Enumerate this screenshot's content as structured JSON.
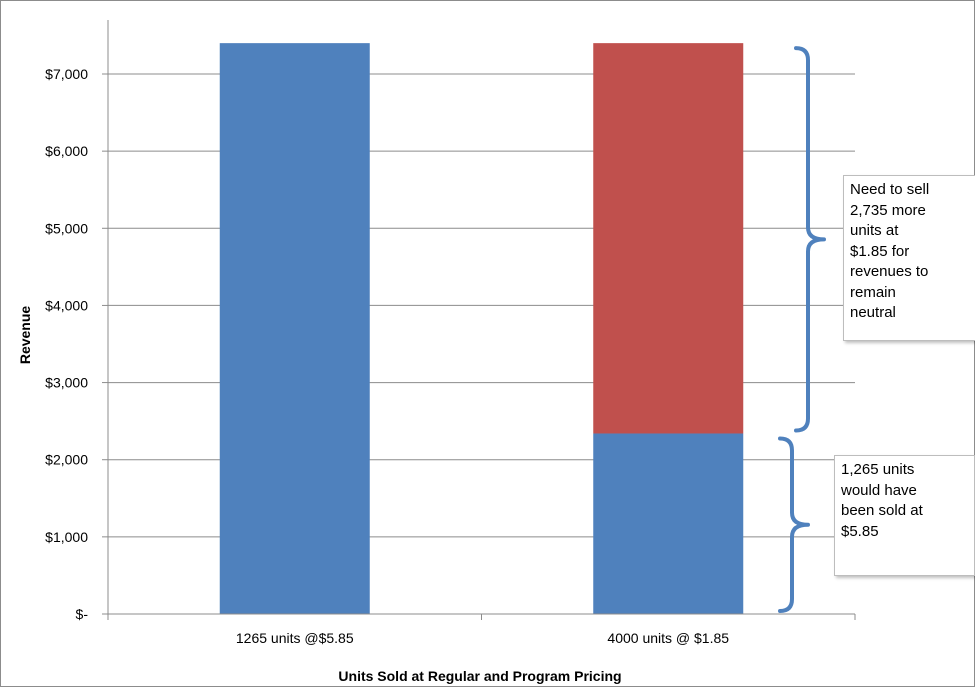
{
  "chart_data": {
    "type": "bar",
    "stacked": true,
    "categories": [
      "1265 units @$5.85",
      "4000 units @ $1.85"
    ],
    "series": [
      {
        "values": [
          7400,
          2340
        ],
        "color": "#4F81BD"
      },
      {
        "values": [
          0,
          5060
        ],
        "color": "#C0504D"
      }
    ],
    "xlabel": "Units Sold at Regular and Program Pricing",
    "ylabel": "Revenue",
    "ylim": [
      0,
      7700
    ],
    "yticks": [
      {
        "value": 0,
        "label": "$-"
      },
      {
        "value": 1000,
        "label": "$1,000"
      },
      {
        "value": 2000,
        "label": "$2,000"
      },
      {
        "value": 3000,
        "label": "$3,000"
      },
      {
        "value": 4000,
        "label": "$4,000"
      },
      {
        "value": 5000,
        "label": "$5,000"
      },
      {
        "value": 6000,
        "label": "$6,000"
      },
      {
        "value": 7000,
        "label": "$7,000"
      }
    ],
    "grid": true,
    "legend": "none",
    "annotations": [
      {
        "text": "Need to sell\n2,735 more\nunits at\n$1.85  for\nrevenues to\nremain\nneutral",
        "brace_from": 2340,
        "brace_to": 7400
      },
      {
        "text": "1,265 units\nwould have\nbeen sold at\n$5.85",
        "brace_from": 0,
        "brace_to": 2340
      }
    ],
    "colors": {
      "gridline": "#8c8c8c",
      "brace": "#4F81BD"
    }
  }
}
